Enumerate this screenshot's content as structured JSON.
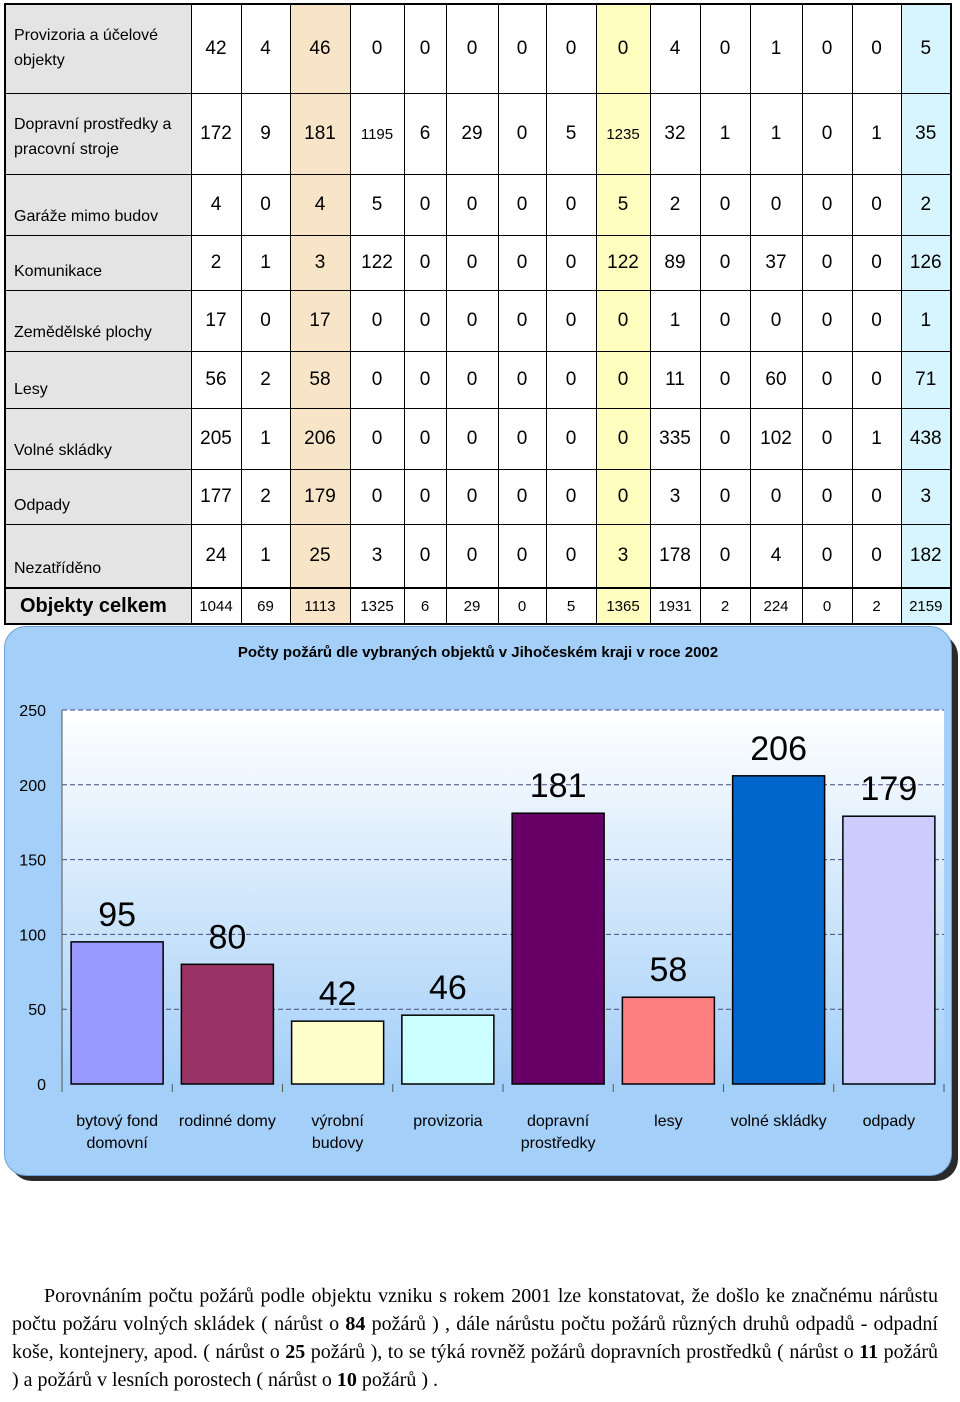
{
  "table": {
    "rows": [
      {
        "label": "Provizoria a účelové objekty",
        "values": [
          "42",
          "4",
          "46",
          "0",
          "0",
          "0",
          "0",
          "0",
          "0",
          "4",
          "0",
          "1",
          "0",
          "0",
          "5"
        ]
      },
      {
        "label": "Dopravní prostředky a pracovní  stroje",
        "values": [
          "172",
          "9",
          "181",
          "1195",
          "6",
          "29",
          "0",
          "5",
          "1235",
          "32",
          "1",
          "1",
          "0",
          "1",
          "35"
        ]
      },
      {
        "label": "Garáže mimo budov",
        "values": [
          "4",
          "0",
          "4",
          "5",
          "0",
          "0",
          "0",
          "0",
          "5",
          "2",
          "0",
          "0",
          "0",
          "0",
          "2"
        ]
      },
      {
        "label": "Komunikace",
        "values": [
          "2",
          "1",
          "3",
          "122",
          "0",
          "0",
          "0",
          "0",
          "122",
          "89",
          "0",
          "37",
          "0",
          "0",
          "126"
        ]
      },
      {
        "label": "Zemědělské plochy",
        "values": [
          "17",
          "0",
          "17",
          "0",
          "0",
          "0",
          "0",
          "0",
          "0",
          "1",
          "0",
          "0",
          "0",
          "0",
          "1"
        ]
      },
      {
        "label": "Lesy",
        "values": [
          "56",
          "2",
          "58",
          "0",
          "0",
          "0",
          "0",
          "0",
          "0",
          "11",
          "0",
          "60",
          "0",
          "0",
          "71"
        ]
      },
      {
        "label": "Volné skládky",
        "values": [
          "205",
          "1",
          "206",
          "0",
          "0",
          "0",
          "0",
          "0",
          "0",
          "335",
          "0",
          "102",
          "0",
          "1",
          "438"
        ]
      },
      {
        "label": "Odpady",
        "values": [
          "177",
          "2",
          "179",
          "0",
          "0",
          "0",
          "0",
          "0",
          "0",
          "3",
          "0",
          "0",
          "0",
          "0",
          "3"
        ]
      },
      {
        "label": "Nezatříděno",
        "values": [
          "24",
          "1",
          "25",
          "3",
          "0",
          "0",
          "0",
          "0",
          "3",
          "178",
          "0",
          "4",
          "0",
          "0",
          "182"
        ]
      }
    ],
    "total": {
      "label": "Objekty celkem",
      "values": [
        "1044",
        "69",
        "1113",
        "1325",
        "6",
        "29",
        "0",
        "5",
        "1365",
        "1931",
        "2",
        "224",
        "0",
        "2",
        "2159"
      ]
    }
  },
  "chart_data": {
    "type": "bar",
    "title": "Počty požárů dle vybraných objektů v Jihočeském kraji v roce 2002",
    "categories": [
      "bytový fond domovní",
      "rodinné domy",
      "výrobní budovy",
      "provizoria",
      "dopravní prostředky",
      "lesy",
      "volné skládky",
      "odpady"
    ],
    "category_lines": [
      [
        "bytový fond",
        "domovní"
      ],
      [
        "rodinné domy"
      ],
      [
        "výrobní",
        "budovy"
      ],
      [
        "provizoria"
      ],
      [
        "dopravní",
        "prostředky"
      ],
      [
        "lesy"
      ],
      [
        "volné skládky"
      ],
      [
        "odpady"
      ]
    ],
    "values": [
      95,
      80,
      42,
      46,
      181,
      58,
      206,
      179
    ],
    "bar_colors": [
      "#9999ff",
      "#993366",
      "#ffffcc",
      "#ccffff",
      "#660066",
      "#ff8080",
      "#0066cc",
      "#ccccff"
    ],
    "ylim": [
      0,
      250
    ],
    "yticks": [
      "0",
      "50",
      "100",
      "150",
      "200",
      "250"
    ],
    "grid": true,
    "background_color": "#a4cff8",
    "plot_background": "top-white-to-blue-gradient"
  },
  "paragraph": {
    "p1": "Porovnáním počtu požárů podle objektu vzniku s rokem 2001 lze konstatovat, že došlo ke značnému nárůstu počtu požáru volných skládek ( nárůst o ",
    "n1": "84",
    "p2": " požárů ) , dále nárůstu počtu požárů různých druhů odpadů - odpadní koše, kontejnery, apod. ( nárůst o ",
    "n2": "25",
    "p3": " požárů ), to  se týká rovněž požárů dopravních prostředků ( nárůst o ",
    "n3": "11",
    "p4": " požárů ) a požárů v lesních porostech ( nárůst o ",
    "n4": "10",
    "p5": " požárů ) ."
  }
}
